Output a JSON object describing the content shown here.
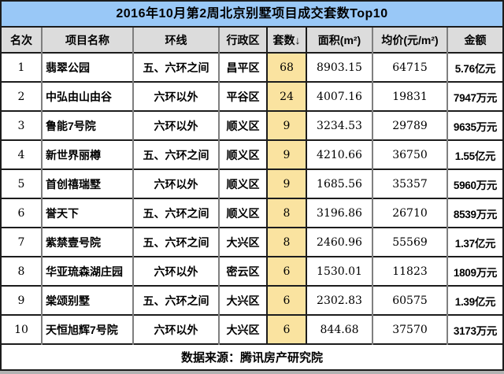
{
  "chart_data": {
    "type": "table",
    "title": "2016年10月第2周北京别墅项目成交套数Top10",
    "columns": [
      "名次",
      "项目名称",
      "环线",
      "行政区",
      "套数↓",
      "面积(m²)",
      "均价(元/m²)",
      "金额"
    ],
    "rows": [
      [
        "1",
        "翡翠公园",
        "五、六环之间",
        "昌平区",
        "68",
        "8903.15",
        "64715",
        "5.76亿元"
      ],
      [
        "2",
        "中弘由山由谷",
        "六环以外",
        "平谷区",
        "24",
        "4007.16",
        "19831",
        "7947万元"
      ],
      [
        "3",
        "鲁能7号院",
        "六环以外",
        "顺义区",
        "9",
        "3234.53",
        "29789",
        "9635万元"
      ],
      [
        "4",
        "新世界丽樽",
        "五、六环之间",
        "顺义区",
        "9",
        "4210.66",
        "36750",
        "1.55亿元"
      ],
      [
        "5",
        "首创禧瑞墅",
        "六环以外",
        "顺义区",
        "9",
        "1685.56",
        "35357",
        "5960万元"
      ],
      [
        "6",
        "誉天下",
        "五、六环之间",
        "顺义区",
        "8",
        "3196.86",
        "26710",
        "8539万元"
      ],
      [
        "7",
        "紫禁壹号院",
        "五、六环之间",
        "大兴区",
        "8",
        "2460.96",
        "55569",
        "1.37亿元"
      ],
      [
        "8",
        "华亚琉森湖庄园",
        "六环以外",
        "密云区",
        "6",
        "1530.01",
        "11823",
        "1809万元"
      ],
      [
        "9",
        "棠颂别墅",
        "五、六环之间",
        "大兴区",
        "6",
        "2302.83",
        "60575",
        "1.39亿元"
      ],
      [
        "10",
        "天恒旭辉7号院",
        "六环以外",
        "大兴区",
        "6",
        "844.68",
        "37570",
        "3173万元"
      ]
    ],
    "source_note": "数据来源：腾讯房产研究院",
    "sorted_column": "套数",
    "sort_direction": "desc"
  },
  "colors": {
    "title_bg": "#99c8f7",
    "header_bg": "#dcdcdc",
    "units_bg": "#fae3a0",
    "border_dark": "#1c1c1c",
    "border_gray": "#7f7f7f"
  }
}
